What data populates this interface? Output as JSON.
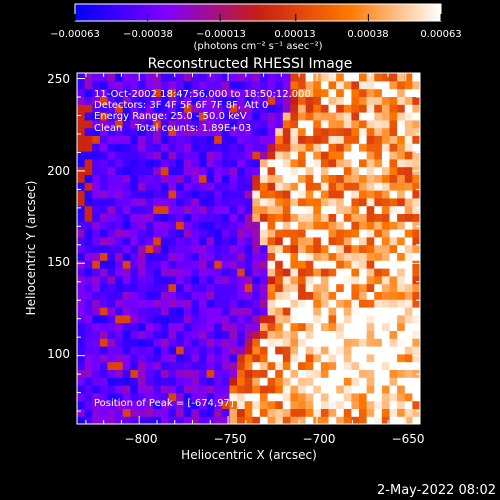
{
  "chart_data": {
    "type": "heatmap",
    "title": "Reconstructed RHESSI Image",
    "xlabel": "Heliocentric X (arcsec)",
    "ylabel": "Heliocentric Y (arcsec)",
    "xlim": [
      -835,
      -642
    ],
    "ylim": [
      63,
      253
    ],
    "xticks": [
      -800,
      -750,
      -700,
      -650
    ],
    "xtick_labels": [
      "−800",
      "−750",
      "−700",
      "−650"
    ],
    "yticks": [
      100,
      150,
      200,
      250
    ],
    "ytick_labels": [
      "100",
      "150",
      "200",
      "250"
    ],
    "grid": false,
    "colorbar": {
      "location": "top",
      "range": [
        -0.00063,
        0.00063
      ],
      "ticks": [
        -0.00063,
        -0.00038,
        -0.00013,
        0.00013,
        0.00038,
        0.00063
      ],
      "tick_labels": [
        "−0.00063",
        "−0.00038",
        "−0.00013",
        "0.00013",
        "0.00038",
        "0.00063"
      ],
      "unit_label": "(photons cm⁻² s⁻¹ asec⁻²)"
    },
    "colors": {
      "low": "#0000ff",
      "mid_low": "#7f00ff",
      "mid": "#c81e14",
      "mid_high": "#ff7800",
      "high": "#ffffff"
    },
    "annotations": [
      "11-Oct-2002 18:47:56.000 to 18:50:12.000",
      "Detectors: 3F 4F 5F 6F 7F 8F, Att 0",
      "Energy Range: 25.0 - 50.0 keV",
      "Clean    Total counts: 1.89E+03"
    ],
    "peak_label": "Position of Peak = [-674,97]",
    "peak": [
      -674,
      97
    ],
    "footer_timestamp": "2-May-2022 08:02"
  }
}
